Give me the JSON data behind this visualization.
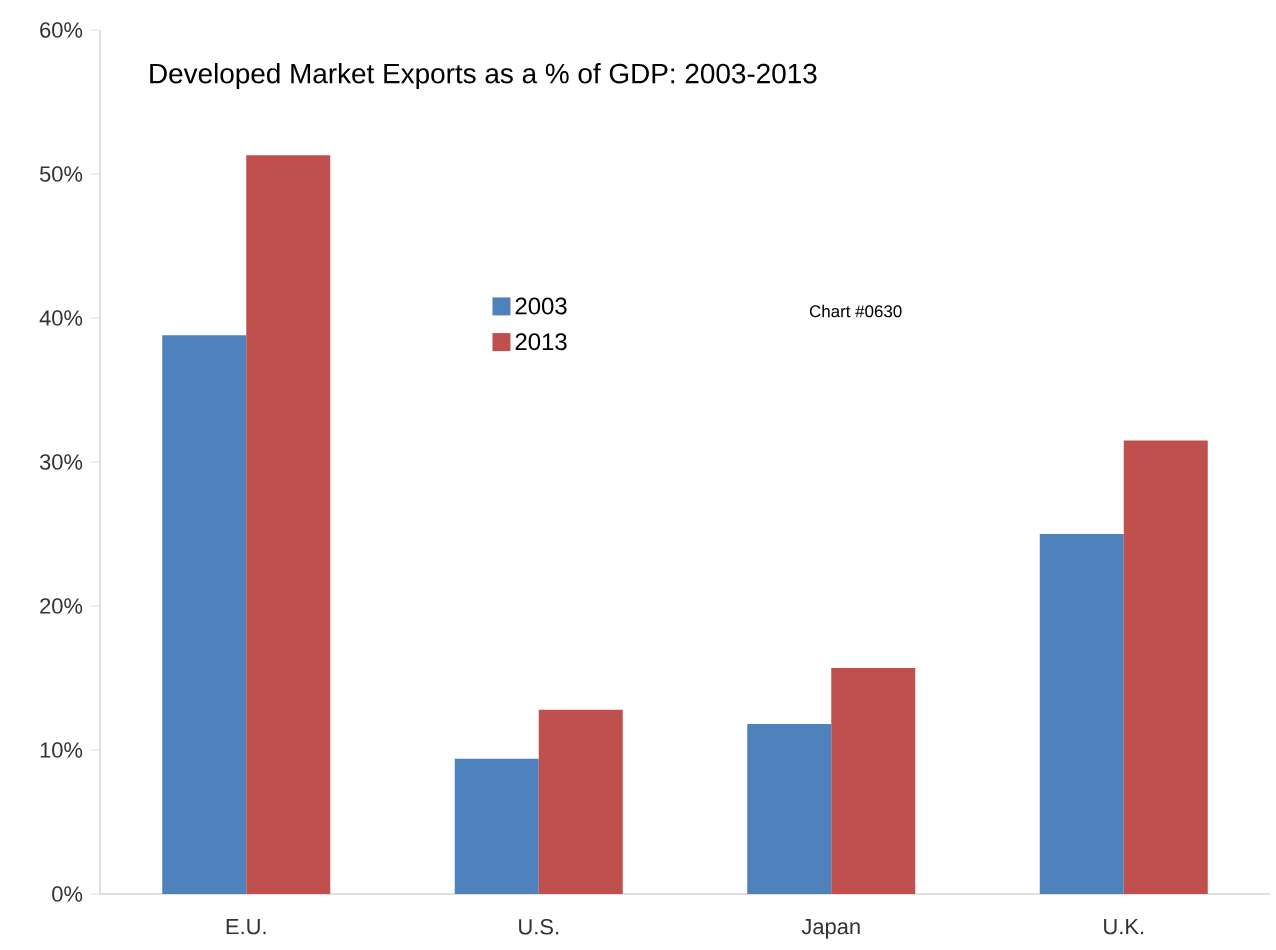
{
  "chart_data": {
    "type": "bar",
    "title": "Developed Market Exports as a % of GDP: 2003-2013",
    "categories": [
      "E.U.",
      "U.S.",
      "Japan",
      "U.K."
    ],
    "series": [
      {
        "name": "2003",
        "color": "#4f81bd",
        "values": [
          38.8,
          9.4,
          11.8,
          25.0
        ]
      },
      {
        "name": "2013",
        "color": "#c0504d",
        "values": [
          51.3,
          12.8,
          15.7,
          31.5
        ]
      }
    ],
    "ylim": [
      0,
      60
    ],
    "yticks": [
      {
        "value": 0,
        "label": "0%"
      },
      {
        "value": 10,
        "label": "10%"
      },
      {
        "value": 20,
        "label": "20%"
      },
      {
        "value": 30,
        "label": "30%"
      },
      {
        "value": 40,
        "label": "40%"
      },
      {
        "value": 50,
        "label": "50%"
      },
      {
        "value": 60,
        "label": "60%"
      }
    ],
    "legend": "center",
    "annotations": [
      "Chart #0630"
    ]
  }
}
